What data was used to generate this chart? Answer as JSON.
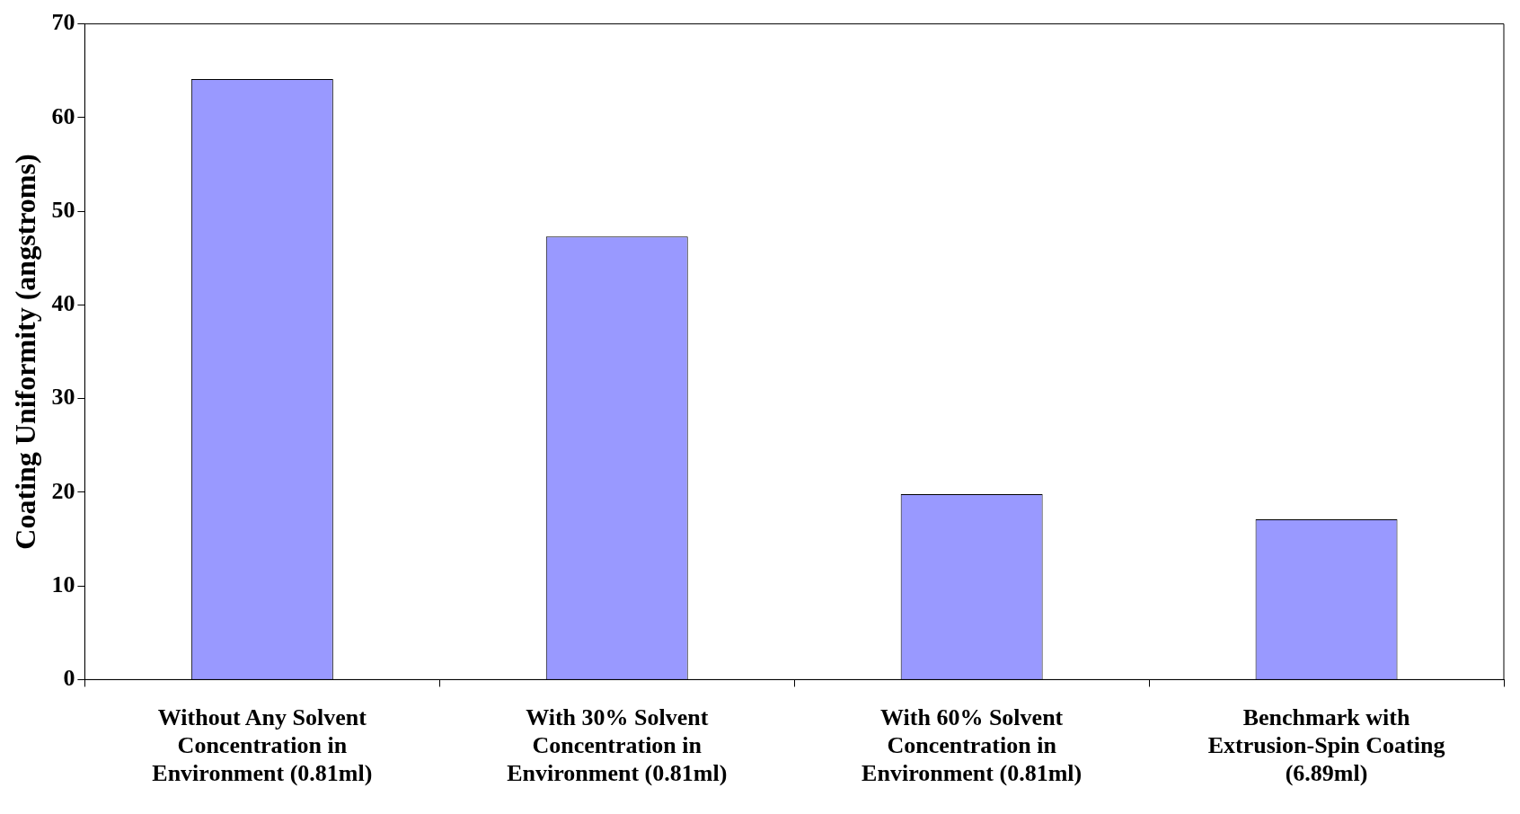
{
  "chart_data": {
    "type": "bar",
    "ylabel": "Coating Uniformity (angstroms)",
    "categories": [
      "Without Any Solvent Concentration in Environment (0.81ml)",
      "With 30% Solvent Concentration in Environment (0.81ml)",
      "With 60% Solvent Concentration in Environment (0.81ml)",
      "Benchmark with Extrusion-Spin Coating (6.89ml)"
    ],
    "values": [
      64.1,
      47.3,
      19.8,
      17.1
    ],
    "color": "#9999ff",
    "ylim": [
      0,
      70
    ],
    "yticks": [
      0,
      10,
      20,
      30,
      40,
      50,
      60,
      70
    ]
  }
}
